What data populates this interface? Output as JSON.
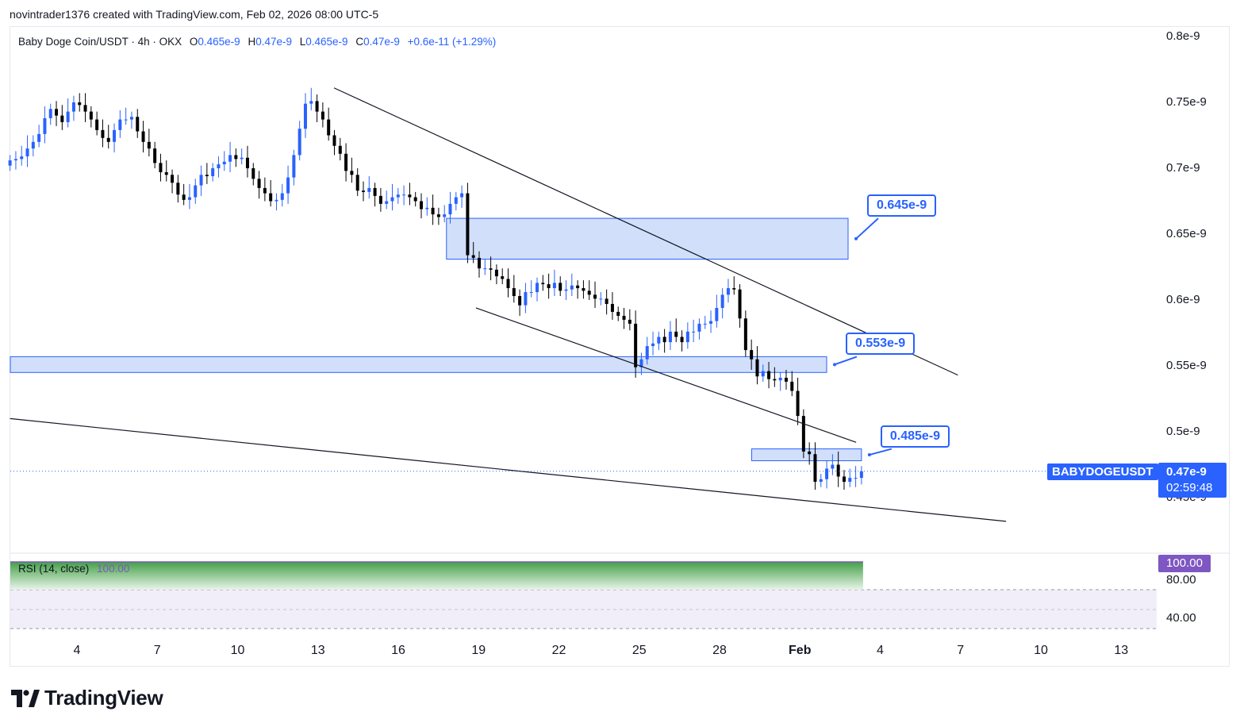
{
  "header": {
    "creator": "novintrader1376 created with TradingView.com, Feb 02, 2026 08:00 UTC-5"
  },
  "legend": {
    "symbol": "Baby Doge Coin/USDT · 4h · OKX",
    "open_k": "O",
    "open": "0.465e-9",
    "high_k": "H",
    "high": "0.47e-9",
    "low_k": "L",
    "low": "0.465e-9",
    "close_k": "C",
    "close": "0.47e-9",
    "change": "+0.6e-11 (+1.29%)"
  },
  "colors": {
    "up": "#2962ff",
    "down": "#000000",
    "zone_fill": "#d1dffb",
    "zone_border": "#2962ff",
    "rsi": "#7e57c2"
  },
  "chart_data": {
    "type": "candlestick",
    "symbol": "BABYDOGEUSDT",
    "interval": "4h",
    "exchange": "OKX",
    "y_axis": {
      "labels": [
        "0.8e-9",
        "0.75e-9",
        "0.7e-9",
        "0.65e-9",
        "0.6e-9",
        "0.55e-9",
        "0.5e-9",
        "0.45e-9"
      ],
      "values": [
        0.8,
        0.75,
        0.7,
        0.65,
        0.6,
        0.55,
        0.5,
        0.45
      ],
      "unit_multiplier": "e-9"
    },
    "x_axis": {
      "labels": [
        "4",
        "7",
        "10",
        "13",
        "16",
        "19",
        "22",
        "25",
        "28",
        "Feb",
        "4",
        "7",
        "10",
        "13"
      ],
      "bold": [
        false,
        false,
        false,
        false,
        false,
        false,
        false,
        false,
        false,
        true,
        false,
        false,
        false,
        false
      ],
      "day_offsets": [
        0,
        3,
        6,
        9,
        12,
        15,
        18,
        21,
        24,
        27,
        30,
        33,
        36,
        39
      ]
    },
    "last_price": "0.47e-9",
    "last_price_value": 0.47,
    "countdown": "02:59:48",
    "zones": [
      {
        "name": "resistance-zone",
        "low": 0.631,
        "high": 0.662,
        "start_day": 13.8,
        "end_day": 28.8,
        "label": "0.645e-9"
      },
      {
        "name": "mid-zone",
        "low": 0.545,
        "high": 0.557,
        "start_day": -2.5,
        "end_day": 28.0,
        "label": "0.553e-9"
      },
      {
        "name": "support-zone",
        "low": 0.478,
        "high": 0.487,
        "start_day": 25.2,
        "end_day": 29.3,
        "label": "0.485e-9"
      }
    ],
    "trendlines": [
      {
        "name": "upper-channel",
        "from": [
          9.6,
          0.761
        ],
        "to": [
          32.9,
          0.543
        ]
      },
      {
        "name": "lower-channel",
        "from": [
          14.9,
          0.594
        ],
        "to": [
          29.1,
          0.492
        ]
      },
      {
        "name": "long-support",
        "from": [
          -2.5,
          0.51
        ],
        "to": [
          34.7,
          0.432
        ]
      }
    ],
    "candle_closes": [
      0.706,
      0.707,
      0.709,
      0.715,
      0.72,
      0.726,
      0.738,
      0.745,
      0.74,
      0.735,
      0.743,
      0.75,
      0.748,
      0.743,
      0.737,
      0.729,
      0.723,
      0.72,
      0.729,
      0.737,
      0.737,
      0.739,
      0.728,
      0.72,
      0.715,
      0.704,
      0.697,
      0.695,
      0.689,
      0.68,
      0.676,
      0.678,
      0.687,
      0.695,
      0.694,
      0.7,
      0.703,
      0.705,
      0.71,
      0.707,
      0.708,
      0.7,
      0.692,
      0.685,
      0.681,
      0.675,
      0.676,
      0.681,
      0.693,
      0.71,
      0.73,
      0.749,
      0.751,
      0.743,
      0.737,
      0.725,
      0.717,
      0.711,
      0.698,
      0.695,
      0.683,
      0.682,
      0.685,
      0.679,
      0.673,
      0.675,
      0.678,
      0.68,
      0.68,
      0.678,
      0.675,
      0.669,
      0.67,
      0.665,
      0.663,
      0.665,
      0.673,
      0.678,
      0.681,
      0.634,
      0.632,
      0.624,
      0.624,
      0.623,
      0.618,
      0.616,
      0.609,
      0.603,
      0.596,
      0.606,
      0.606,
      0.613,
      0.612,
      0.609,
      0.613,
      0.607,
      0.608,
      0.611,
      0.609,
      0.607,
      0.604,
      0.601,
      0.601,
      0.597,
      0.591,
      0.588,
      0.585,
      0.582,
      0.549,
      0.555,
      0.565,
      0.567,
      0.572,
      0.568,
      0.576,
      0.572,
      0.568,
      0.576,
      0.576,
      0.582,
      0.582,
      0.584,
      0.594,
      0.604,
      0.609,
      0.608,
      0.586,
      0.562,
      0.555,
      0.542,
      0.546,
      0.54,
      0.539,
      0.541,
      0.538,
      0.531,
      0.512,
      0.485,
      0.483,
      0.462,
      0.464,
      0.472,
      0.475,
      0.466,
      0.462,
      0.465,
      0.465,
      0.47
    ],
    "candle_time_start_day": -2.5,
    "candle_time_end_day": 29.3,
    "rsi": {
      "title": "RSI (14, close)",
      "value_text": "100.00",
      "value": 100,
      "levels": [
        "80.00",
        "40.00"
      ],
      "level_values": [
        80,
        40
      ]
    }
  },
  "branding": {
    "wordmark": "TradingView",
    "logo_icon": "tradingview-logo-icon"
  }
}
